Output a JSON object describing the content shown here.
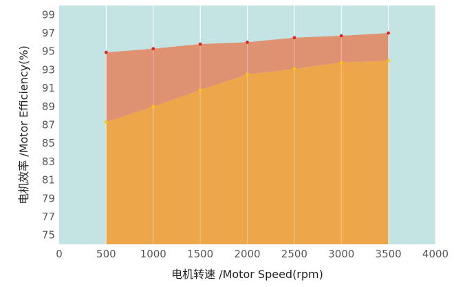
{
  "chart_data": {
    "type": "area",
    "xlabel": "电机转速 /Motor Speed(rpm)",
    "ylabel": "电机效率 /Motor Efficiency(%)",
    "xlim": [
      0,
      4000
    ],
    "ylim": [
      74,
      100
    ],
    "xticks": [
      0,
      500,
      1000,
      1500,
      2000,
      2500,
      3000,
      3500,
      4000
    ],
    "yticks": [
      75,
      77,
      79,
      81,
      83,
      85,
      87,
      89,
      91,
      93,
      95,
      97,
      99
    ],
    "x": [
      500,
      1000,
      1500,
      2000,
      2500,
      3000,
      3500
    ],
    "series": [
      {
        "values": [
          94.9,
          95.3,
          95.8,
          96.0,
          96.5,
          96.7,
          97.0
        ]
      },
      {
        "values": [
          87.3,
          89.0,
          90.8,
          92.5,
          93.1,
          93.8,
          94.0
        ]
      }
    ],
    "grid": "vertical",
    "colors": {
      "background": "#c4e4e4",
      "upper_fill": "#e08d6b",
      "lower_fill": "#eea64b",
      "upper_marker": "#d9282a",
      "lower_marker": "#f5c518",
      "gridline": "#ffffff"
    }
  }
}
